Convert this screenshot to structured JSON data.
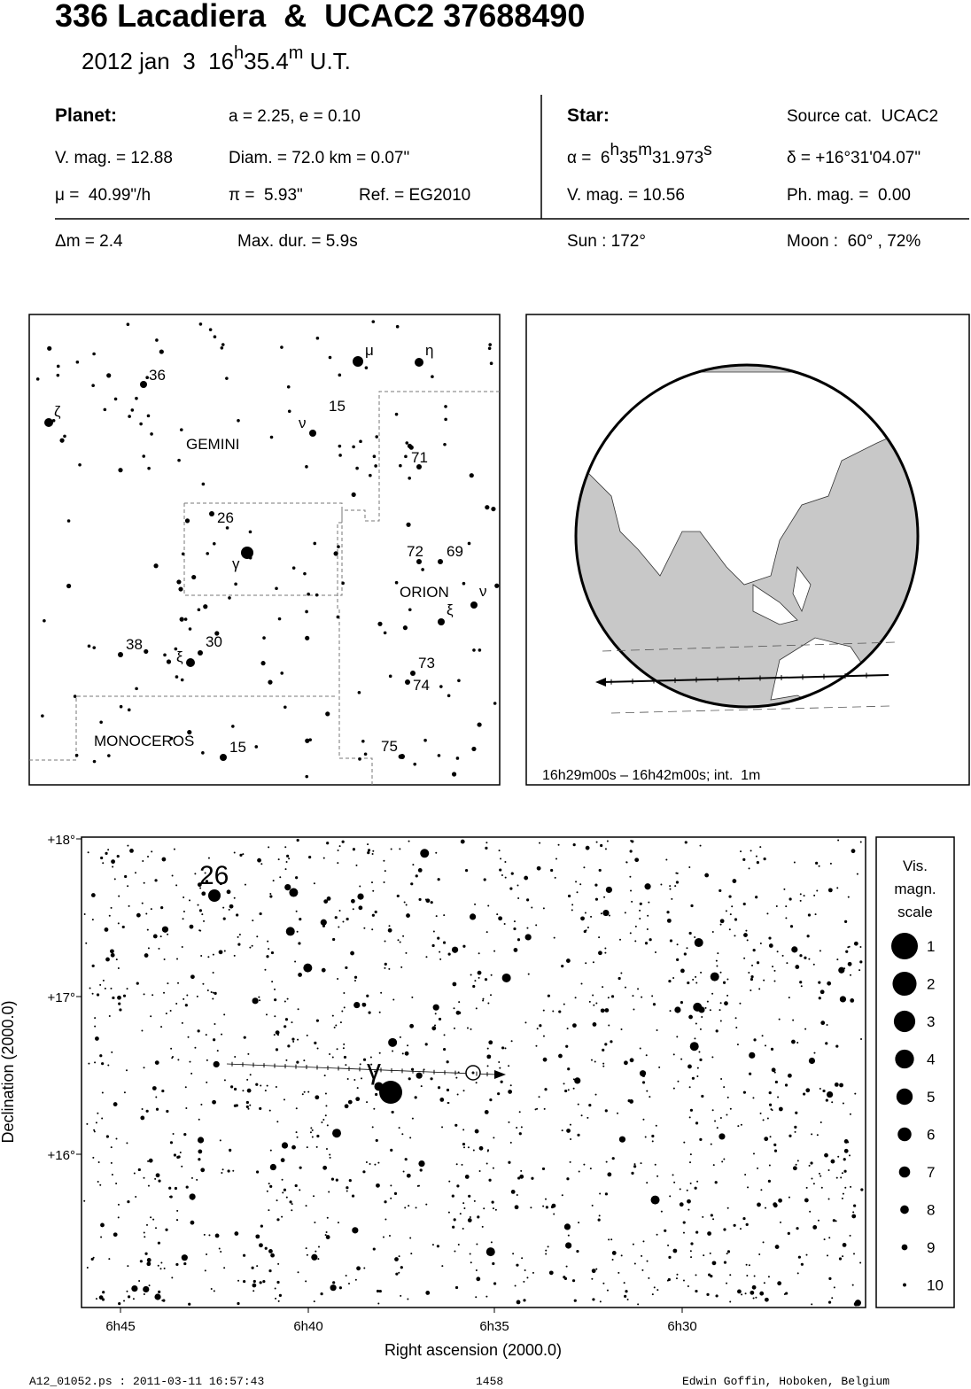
{
  "header": {
    "title": "336 Lacadiera  &  UCAC2 37688490",
    "date": [
      "2012 jan  3  16",
      "h",
      "35.4",
      "m",
      " U.T."
    ]
  },
  "info": {
    "planet": {
      "label": "Planet:",
      "orbit": "a = 2.25, e = 0.10",
      "vmag": "V. mag. = 12.88",
      "diam": "Diam. = 72.0 km = 0.07\"",
      "mu": "μ =  40.99\"/h",
      "pi": "π =  5.93\"",
      "ref": "Ref. = EG2010"
    },
    "star": {
      "label": "Star:",
      "source": "Source cat.  UCAC2",
      "alpha": [
        "α =  6",
        "h",
        "35",
        "m",
        "31.973",
        "s"
      ],
      "delta": "δ = +16°31'04.07\"",
      "vmag": "V. mag. = 10.56",
      "phmag": "Ph. mag. =  0.00"
    },
    "bottom": [
      "Δm = 2.4",
      "Max. dur. = 5.9s",
      "Sun : 172°",
      "Moon :  60° , 72%"
    ]
  },
  "finder": {
    "labels": [
      "36",
      "μ",
      "η",
      "ζ",
      "ν",
      "15",
      "GEMINI",
      "71",
      "26",
      "γ",
      "72",
      "69",
      "ORION",
      "ν",
      "ξ",
      "38",
      "ξ",
      "30",
      "73",
      "74",
      "MONOCEROS",
      "15",
      "75"
    ]
  },
  "globe": {
    "caption": "16h29m00s – 16h42m00s; int.  1m"
  },
  "detail": {
    "yticks": [
      "+18°",
      "+17°",
      "+16°"
    ],
    "xticks": [
      "6h45",
      "6h40",
      "6h35",
      "6h30"
    ],
    "xlabel": "Right ascension (2000.0)",
    "ylabel": "Declination (2000.0)",
    "labels": [
      "26",
      "γ"
    ],
    "legend": {
      "title": [
        "Vis.",
        "magn.",
        "scale"
      ],
      "mags": [
        "1",
        "2",
        "3",
        "4",
        "5",
        "6",
        "7",
        "8",
        "9",
        "10"
      ]
    }
  },
  "footer": [
    "A12_01052.ps : 2011-03-11 16:57:43",
    "1458",
    "Edwin Goffin, Hoboken, Belgium"
  ]
}
